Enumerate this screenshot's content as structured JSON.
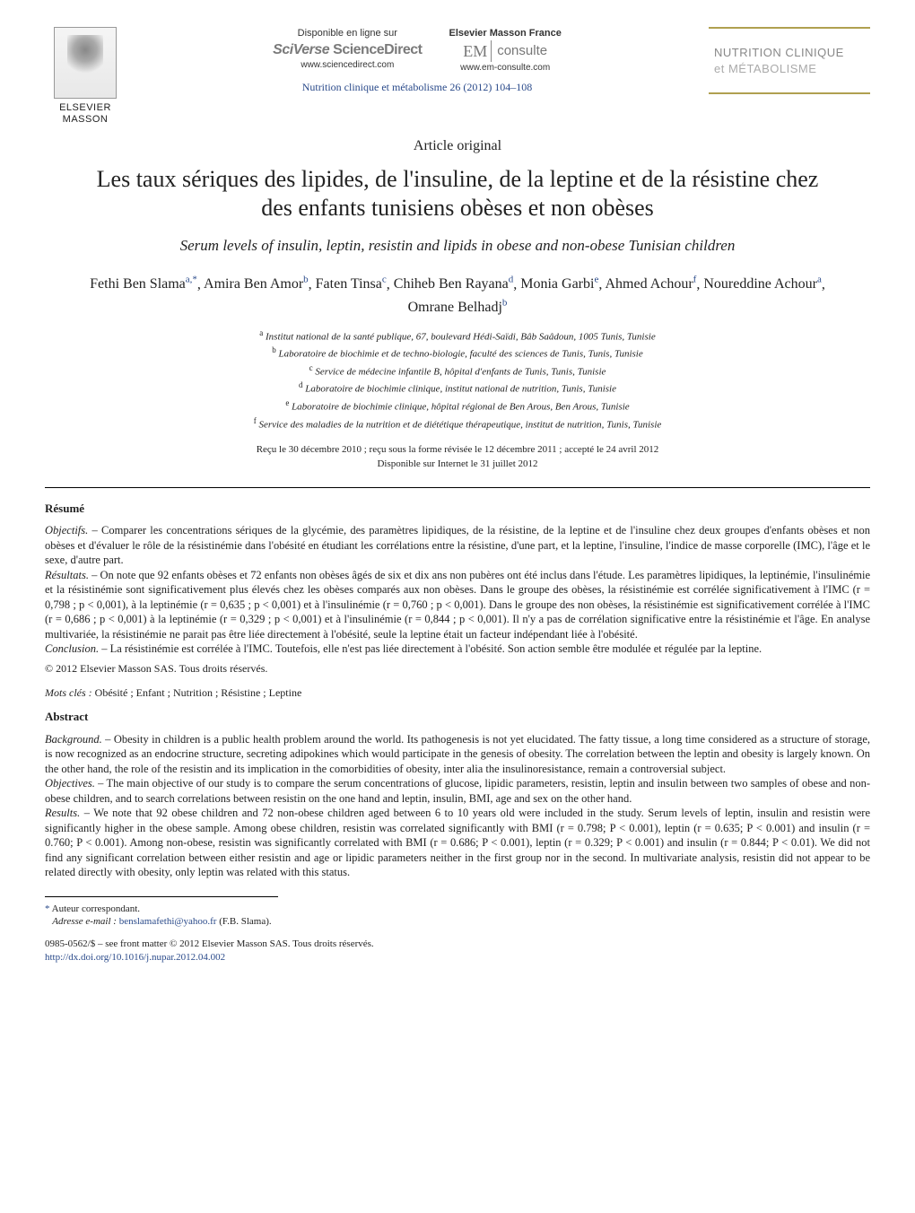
{
  "publisher": {
    "name": "ELSEVIER MASSON"
  },
  "header": {
    "col1": {
      "top": "Disponible en ligne sur",
      "brand": "SciVerse ScienceDirect",
      "url": "www.sciencedirect.com"
    },
    "col2": {
      "top": "Elsevier Masson France",
      "brand_em": "EM",
      "brand_consulte": "consulte",
      "url": "www.em-consulte.com"
    },
    "journal": {
      "line1": "NUTRITION CLINIQUE",
      "line2": "et MÉTABOLISME"
    }
  },
  "citation": "Nutrition clinique et métabolisme 26 (2012) 104–108",
  "article_type": "Article original",
  "title": "Les taux sériques des lipides, de l'insuline, de la leptine et de la résistine chez des enfants tunisiens obèses et non obèses",
  "subtitle": "Serum levels of insulin, leptin, resistin and lipids in obese and non-obese Tunisian children",
  "authors": [
    {
      "name": "Fethi Ben Slama",
      "sup": "a,*"
    },
    {
      "name": "Amira Ben Amor",
      "sup": "b"
    },
    {
      "name": "Faten Tinsa",
      "sup": "c"
    },
    {
      "name": "Chiheb Ben Rayana",
      "sup": "d"
    },
    {
      "name": "Monia Garbi",
      "sup": "e"
    },
    {
      "name": "Ahmed Achour",
      "sup": "f"
    },
    {
      "name": "Noureddine Achour",
      "sup": "a"
    },
    {
      "name": "Omrane Belhadj",
      "sup": "b"
    }
  ],
  "affiliations": [
    {
      "sup": "a",
      "text": "Institut national de la santé publique, 67, boulevard Hédi-Saïdi, Bâb Saâdoun, 1005 Tunis, Tunisie"
    },
    {
      "sup": "b",
      "text": "Laboratoire de biochimie et de techno-biologie, faculté des sciences de Tunis, Tunis, Tunisie"
    },
    {
      "sup": "c",
      "text": "Service de médecine infantile B, hôpital d'enfants de Tunis, Tunis, Tunisie"
    },
    {
      "sup": "d",
      "text": "Laboratoire de biochimie clinique, institut national de nutrition, Tunis, Tunisie"
    },
    {
      "sup": "e",
      "text": "Laboratoire de biochimie clinique, hôpital régional de Ben Arous, Ben Arous, Tunisie"
    },
    {
      "sup": "f",
      "text": "Service des maladies de la nutrition et de diététique thérapeutique, institut de nutrition, Tunis, Tunisie"
    }
  ],
  "history": {
    "line1": "Reçu le 30 décembre 2010 ; reçu sous la forme révisée le 12 décembre 2011 ; accepté le 24 avril 2012",
    "line2": "Disponible sur Internet le 31 juillet 2012"
  },
  "resume": {
    "heading": "Résumé",
    "objectifs_label": "Objectifs. –",
    "objectifs": "Comparer les concentrations sériques de la glycémie, des paramètres lipidiques, de la résistine, de la leptine et de l'insuline chez deux groupes d'enfants obèses et non obèses et d'évaluer le rôle de la résistinémie dans l'obésité en étudiant les corrélations entre la résistine, d'une part, et la leptine, l'insuline, l'indice de masse corporelle (IMC), l'âge et le sexe, d'autre part.",
    "resultats_label": "Résultats. –",
    "resultats": "On note que 92 enfants obèses et 72 enfants non obèses âgés de six et dix ans non pubères ont été inclus dans l'étude. Les paramètres lipidiques, la leptinémie, l'insulinémie et la résistinémie sont significativement plus élevés chez les obèses comparés aux non obèses. Dans le groupe des obèses, la résistinémie est corrélée significativement à l'IMC (r = 0,798 ; p < 0,001), à la leptinémie (r = 0,635 ; p < 0,001) et à l'insulinémie (r = 0,760 ; p < 0,001). Dans le groupe des non obèses, la résistinémie est significativement corrélée à l'IMC (r = 0,686 ; p < 0,001) à la leptinémie (r = 0,329 ; p < 0,001) et à l'insulinémie (r = 0,844 ; p < 0,001). Il n'y a pas de corrélation significative entre la résistinémie et l'âge. En analyse multivariée, la résistinémie ne parait pas être liée directement à l'obésité, seule la leptine était un facteur indépendant liée à l'obésité.",
    "conclusion_label": "Conclusion. –",
    "conclusion": "La résistinémie est corrélée à l'IMC. Toutefois, elle n'est pas liée directement à l'obésité. Son action semble être modulée et régulée par la leptine.",
    "copyright": "© 2012 Elsevier Masson SAS. Tous droits réservés.",
    "keywords_label": "Mots clés :",
    "keywords": "Obésité ; Enfant ; Nutrition ; Résistine ; Leptine"
  },
  "abstract": {
    "heading": "Abstract",
    "background_label": "Background. –",
    "background": "Obesity in children is a public health problem around the world. Its pathogenesis is not yet elucidated. The fatty tissue, a long time considered as a structure of storage, is now recognized as an endocrine structure, secreting adipokines which would participate in the genesis of obesity. The correlation between the leptin and obesity is largely known. On the other hand, the role of the resistin and its implication in the comorbidities of obesity, inter alia the insulinoresistance, remain a controversial subject.",
    "objectives_label": "Objectives. –",
    "objectives": "The main objective of our study is to compare the serum concentrations of glucose, lipidic parameters, resistin, leptin and insulin between two samples of obese and non-obese children, and to search correlations between resistin on the one hand and leptin, insulin, BMI, age and sex on the other hand.",
    "results_label": "Results. –",
    "results": "We note that 92 obese children and 72 non-obese children aged between 6 to 10 years old were included in the study. Serum levels of leptin, insulin and resistin were significantly higher in the obese sample. Among obese children, resistin was correlated significantly with BMI (r = 0.798; P < 0.001), leptin (r = 0.635; P < 0.001) and insulin (r = 0.760; P < 0.001). Among non-obese, resistin was significantly correlated with BMI (r = 0.686; P < 0.001), leptin (r = 0.329; P < 0.001) and insulin (r = 0.844; P < 0.01). We did not find any significant correlation between either resistin and age or lipidic parameters neither in the first group nor in the second. In multivariate analysis, resistin did not appear to be related directly with obesity, only leptin was related with this status."
  },
  "footnotes": {
    "corr_label": "* Auteur correspondant.",
    "email_label": "Adresse e-mail :",
    "email": "benslamafethi@yahoo.fr",
    "email_attr": "(F.B. Slama)."
  },
  "footer": {
    "issn": "0985-0562/$ – see front matter © 2012 Elsevier Masson SAS. Tous droits réservés.",
    "doi": "http://dx.doi.org/10.1016/j.nupar.2012.04.002"
  }
}
